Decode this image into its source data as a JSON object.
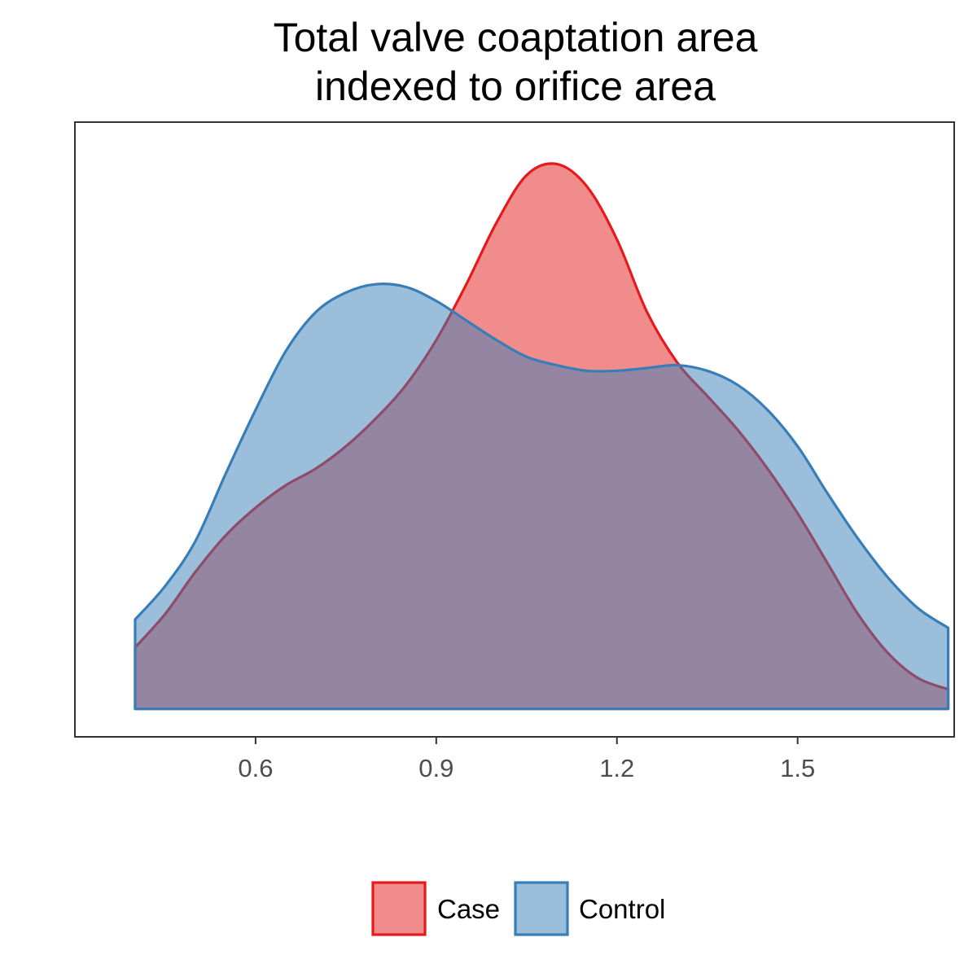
{
  "chart_data": {
    "type": "area",
    "subtype": "density",
    "title_lines": [
      "Total valve coaptation area",
      "indexed to orifice area"
    ],
    "xlabel": "",
    "ylabel": "",
    "xlim": [
      0.3,
      1.76
    ],
    "ylim": [
      -0.05,
      1.05
    ],
    "x_ticks": [
      0.6,
      0.9,
      1.2,
      1.5
    ],
    "x_tick_labels": [
      "0.6",
      "0.9",
      "1.2",
      "1.5"
    ],
    "y_axis_visible": false,
    "grid": false,
    "legend_position": "bottom",
    "series": [
      {
        "name": "Case",
        "fill_color": "#E41A1C",
        "line_color": "#E41A1C",
        "fill_opacity": 0.5,
        "points": [
          [
            0.4,
            0.11
          ],
          [
            0.45,
            0.17
          ],
          [
            0.5,
            0.245
          ],
          [
            0.55,
            0.31
          ],
          [
            0.6,
            0.36
          ],
          [
            0.65,
            0.4
          ],
          [
            0.7,
            0.43
          ],
          [
            0.75,
            0.47
          ],
          [
            0.8,
            0.52
          ],
          [
            0.85,
            0.58
          ],
          [
            0.9,
            0.66
          ],
          [
            0.95,
            0.76
          ],
          [
            1.0,
            0.87
          ],
          [
            1.05,
            0.955
          ],
          [
            1.1,
            0.975
          ],
          [
            1.15,
            0.935
          ],
          [
            1.2,
            0.84
          ],
          [
            1.25,
            0.71
          ],
          [
            1.3,
            0.62
          ],
          [
            1.35,
            0.56
          ],
          [
            1.4,
            0.5
          ],
          [
            1.45,
            0.43
          ],
          [
            1.5,
            0.35
          ],
          [
            1.55,
            0.26
          ],
          [
            1.6,
            0.17
          ],
          [
            1.65,
            0.1
          ],
          [
            1.7,
            0.055
          ],
          [
            1.75,
            0.035
          ]
        ]
      },
      {
        "name": "Control",
        "fill_color": "#377EB8",
        "line_color": "#377EB8",
        "fill_opacity": 0.5,
        "points": [
          [
            0.4,
            0.16
          ],
          [
            0.45,
            0.22
          ],
          [
            0.5,
            0.3
          ],
          [
            0.55,
            0.42
          ],
          [
            0.6,
            0.535
          ],
          [
            0.65,
            0.64
          ],
          [
            0.7,
            0.71
          ],
          [
            0.75,
            0.745
          ],
          [
            0.8,
            0.76
          ],
          [
            0.85,
            0.755
          ],
          [
            0.9,
            0.73
          ],
          [
            0.95,
            0.695
          ],
          [
            1.0,
            0.66
          ],
          [
            1.05,
            0.63
          ],
          [
            1.1,
            0.615
          ],
          [
            1.15,
            0.605
          ],
          [
            1.2,
            0.605
          ],
          [
            1.25,
            0.61
          ],
          [
            1.3,
            0.615
          ],
          [
            1.35,
            0.605
          ],
          [
            1.4,
            0.58
          ],
          [
            1.45,
            0.535
          ],
          [
            1.5,
            0.47
          ],
          [
            1.55,
            0.385
          ],
          [
            1.6,
            0.305
          ],
          [
            1.65,
            0.235
          ],
          [
            1.7,
            0.18
          ],
          [
            1.75,
            0.145
          ]
        ]
      }
    ]
  }
}
